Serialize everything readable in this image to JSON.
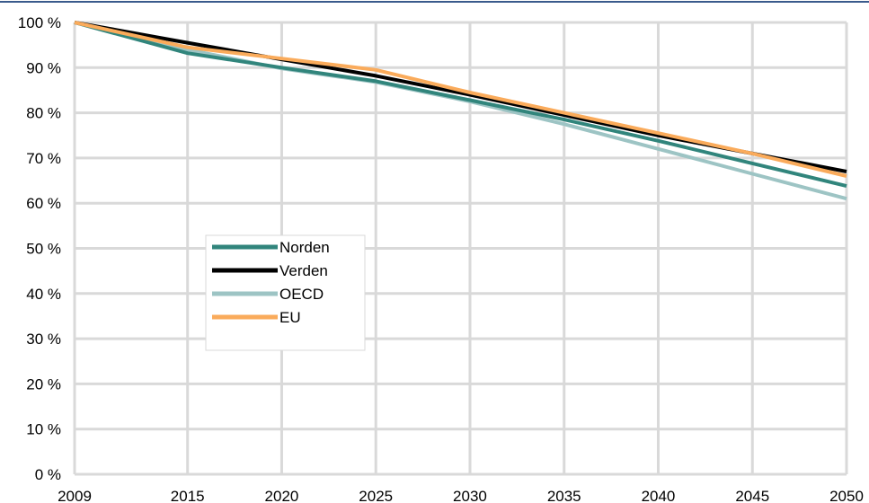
{
  "chart_data": {
    "type": "line",
    "title": "",
    "xlabel": "",
    "ylabel": "",
    "x": [
      2009,
      2015,
      2020,
      2025,
      2030,
      2035,
      2040,
      2045,
      2050
    ],
    "x_ticks": [
      "2009",
      "2015",
      "2020",
      "2025",
      "2030",
      "2035",
      "2040",
      "2045",
      "2050"
    ],
    "ylim": [
      0,
      100
    ],
    "y_ticks": [
      "0 %",
      "10 %",
      "20 %",
      "30 %",
      "40 %",
      "50 %",
      "60 %",
      "70 %",
      "80 %",
      "90 %",
      "100 %"
    ],
    "grid": true,
    "legend_position": "center-left",
    "series": [
      {
        "name": "Norden",
        "color": "#31857C",
        "values": [
          100,
          93.2,
          90,
          87,
          82.8,
          78.5,
          73.8,
          68.8,
          63.8
        ]
      },
      {
        "name": "Verden",
        "color": "#000000",
        "values": [
          100,
          95.5,
          91.8,
          88.2,
          84,
          79.5,
          75,
          71,
          67
        ]
      },
      {
        "name": "OECD",
        "color": "#9DC4C4",
        "values": [
          100,
          94,
          89.8,
          86.8,
          82.5,
          77.5,
          72,
          66.5,
          61
        ]
      },
      {
        "name": "EU",
        "color": "#FAAB5B",
        "values": [
          100,
          94.5,
          92,
          89.5,
          84.5,
          80,
          75.5,
          71,
          66
        ]
      }
    ]
  }
}
